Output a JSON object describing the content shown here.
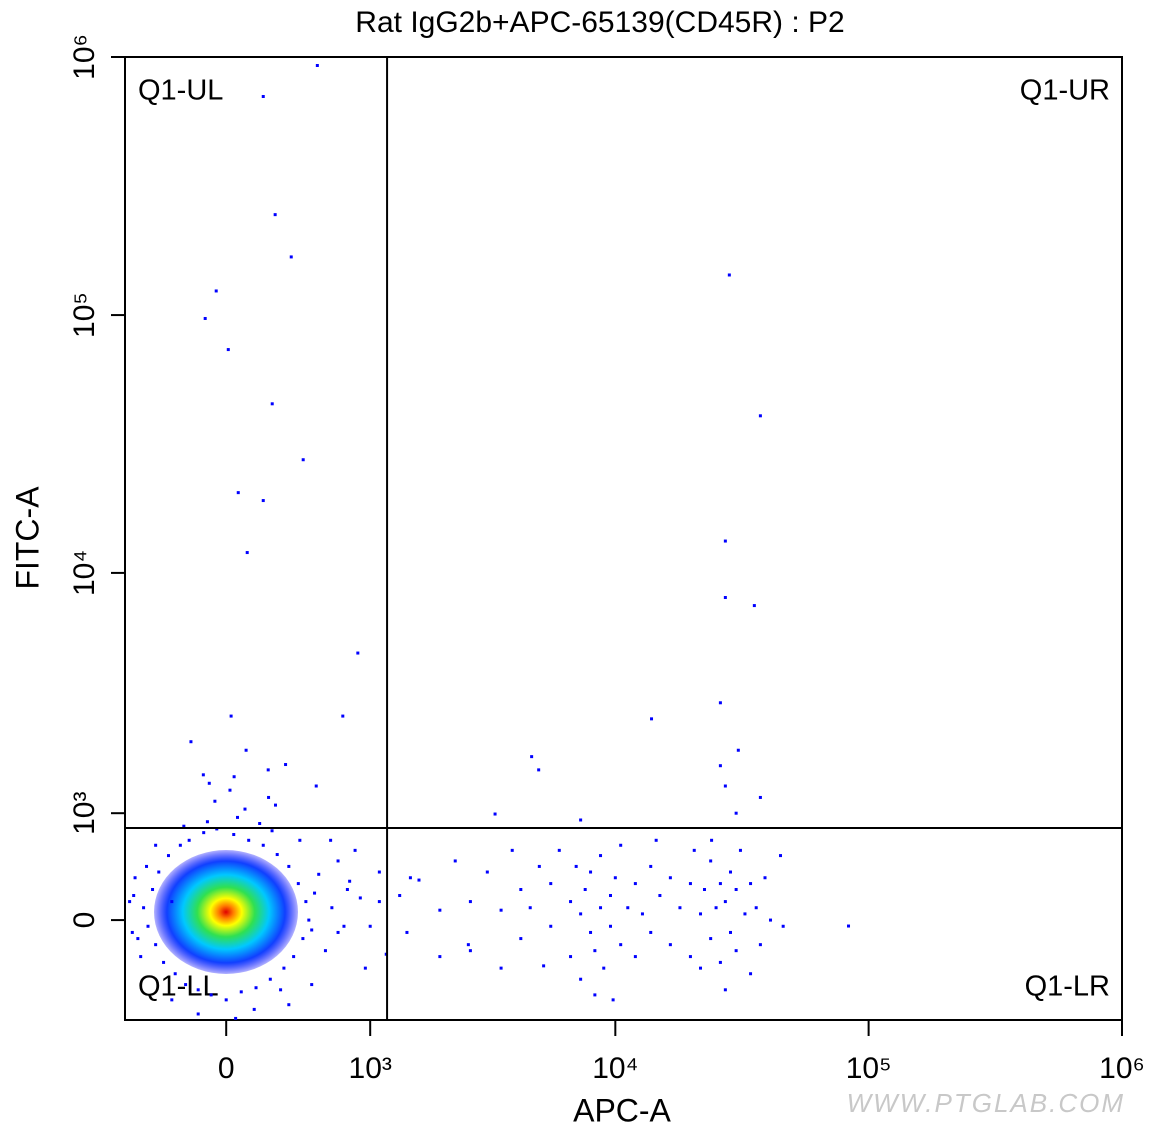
{
  "chart_data": {
    "type": "scatter",
    "title": "Rat IgG2b+APC-65139(CD45R) : P2",
    "xlabel": "APC-A",
    "ylabel": "FITC-A",
    "xscale": "biexponential",
    "yscale": "biexponential",
    "xlim": [
      -615,
      1000000
    ],
    "ylim": [
      -918,
      1000000
    ],
    "xticks": [
      0,
      {
        "value": 1000,
        "label": "10³"
      },
      {
        "value": 10000,
        "label": "10⁴"
      },
      {
        "value": 100000,
        "label": "10⁵"
      },
      {
        "value": 1000000,
        "label": "10⁶"
      }
    ],
    "yticks": [
      0,
      {
        "value": 1000,
        "label": "10³"
      },
      {
        "value": 10000,
        "label": "10⁴"
      },
      {
        "value": 100000,
        "label": "10⁵"
      },
      {
        "value": 1000000,
        "label": "10⁶"
      }
    ],
    "gates": {
      "x": 1190,
      "y": 830
    },
    "quadrant_labels": [
      "Q1-UL",
      "Q1-UR",
      "Q1-LL",
      "Q1-LR"
    ],
    "watermark": "WWW.PTGLAB.COM",
    "series": [
      {
        "color": "#0000ff",
        "x": [
          540,
          200,
          268,
          365,
          -53,
          -112,
          11,
          251,
          442,
          64,
          200,
          112,
          876,
          740,
          26,
          -190,
          106,
          532,
          228,
          -122,
          42,
          28200,
          37400,
          27200,
          27200,
          35400,
          13900,
          26000,
          30600,
          4660,
          4970,
          3330,
          26000,
          27200,
          30000,
          37400,
          7290,
          83300,
          -480,
          -450,
          -420,
          -400,
          -380,
          -350,
          -320,
          -300,
          -280,
          -250,
          -220,
          -200,
          -150,
          -120,
          -80,
          -50,
          0,
          40,
          80,
          120,
          160,
          200,
          240,
          280,
          320,
          350,
          380,
          410,
          440,
          460,
          480,
          500,
          520,
          550,
          600,
          650,
          700,
          -500,
          -460,
          300,
          -100,
          60,
          180,
          -230,
          250,
          420,
          700,
          780,
          900,
          1000,
          1100,
          850,
          -550,
          -520,
          100,
          -60,
          230,
          150,
          -150,
          50,
          350,
          -300,
          500,
          -400,
          20,
          270,
          330,
          -90,
          -580,
          -560,
          -540,
          640,
          800,
          1100,
          750,
          950,
          1350,
          1450,
          1630,
          1990,
          1990,
          2300,
          2650,
          2650,
          3100,
          3520,
          3520,
          3900,
          4220,
          4220,
          4600,
          5000,
          5550,
          5550,
          6000,
          6650,
          6650,
          7000,
          7290,
          7290,
          7600,
          7980,
          7980,
          8300,
          8740,
          8740,
          9000,
          9570,
          9570,
          10000,
          10500,
          10500,
          11200,
          12000,
          12000,
          12800,
          13800,
          13800,
          15000,
          16500,
          16500,
          18000,
          19800,
          19800,
          20500,
          21700,
          21700,
          22500,
          23800,
          23800,
          25000,
          26000,
          26000,
          27200,
          27200,
          28500,
          28500,
          30000,
          30000,
          31200,
          32500,
          34200,
          34200,
          36000,
          37400,
          39000,
          41000,
          44900,
          46000,
          5200,
          9800,
          8300,
          14500,
          24000,
          2600,
          1180,
          1500
        ],
        "values": [
          927000,
          703000,
          245000,
          168000,
          124000,
          97000,
          73500,
          45300,
          27500,
          20500,
          19100,
          12000,
          4860,
          2720,
          2720,
          2130,
          1960,
          1360,
          1610,
          1530,
          1500,
          143000,
          40700,
          13300,
          8020,
          7460,
          2650,
          3080,
          1960,
          1840,
          1610,
          990,
          1680,
          1360,
          1000,
          1200,
          920,
          -48,
          100,
          -50,
          250,
          -200,
          400,
          -350,
          550,
          150,
          -450,
          650,
          -550,
          700,
          -600,
          780,
          -650,
          820,
          -700,
          760,
          -620,
          700,
          -580,
          650,
          -500,
          560,
          -400,
          450,
          -300,
          300,
          -150,
          150,
          0,
          -80,
          220,
          380,
          -250,
          100,
          500,
          -300,
          450,
          -600,
          900,
          950,
          880,
          850,
          800,
          700,
          -100,
          250,
          180,
          -50,
          400,
          600,
          200,
          -150,
          1050,
          1150,
          1200,
          -800,
          -850,
          -900,
          -750,
          -700,
          -550,
          650,
          1300,
          1100,
          1700,
          1400,
          150,
          -100,
          350,
          700,
          320,
          150,
          -50,
          -400,
          200,
          -100,
          330,
          80,
          -300,
          500,
          150,
          -250,
          400,
          80,
          -400,
          600,
          250,
          -150,
          100,
          450,
          -50,
          300,
          600,
          150,
          -300,
          450,
          50,
          -500,
          250,
          -100,
          400,
          -250,
          100,
          550,
          -400,
          200,
          -50,
          350,
          -200,
          650,
          100,
          -300,
          300,
          50,
          -100,
          450,
          200,
          -200,
          350,
          100,
          -300,
          300,
          600,
          50,
          -400,
          250,
          -150,
          500,
          100,
          -350,
          300,
          -600,
          150,
          400,
          -100,
          250,
          -250,
          600,
          50,
          -450,
          300,
          100,
          -200,
          350,
          0,
          550,
          -50,
          -380,
          -700,
          -650,
          700,
          700,
          -200,
          -280,
          350
        ]
      }
    ]
  }
}
